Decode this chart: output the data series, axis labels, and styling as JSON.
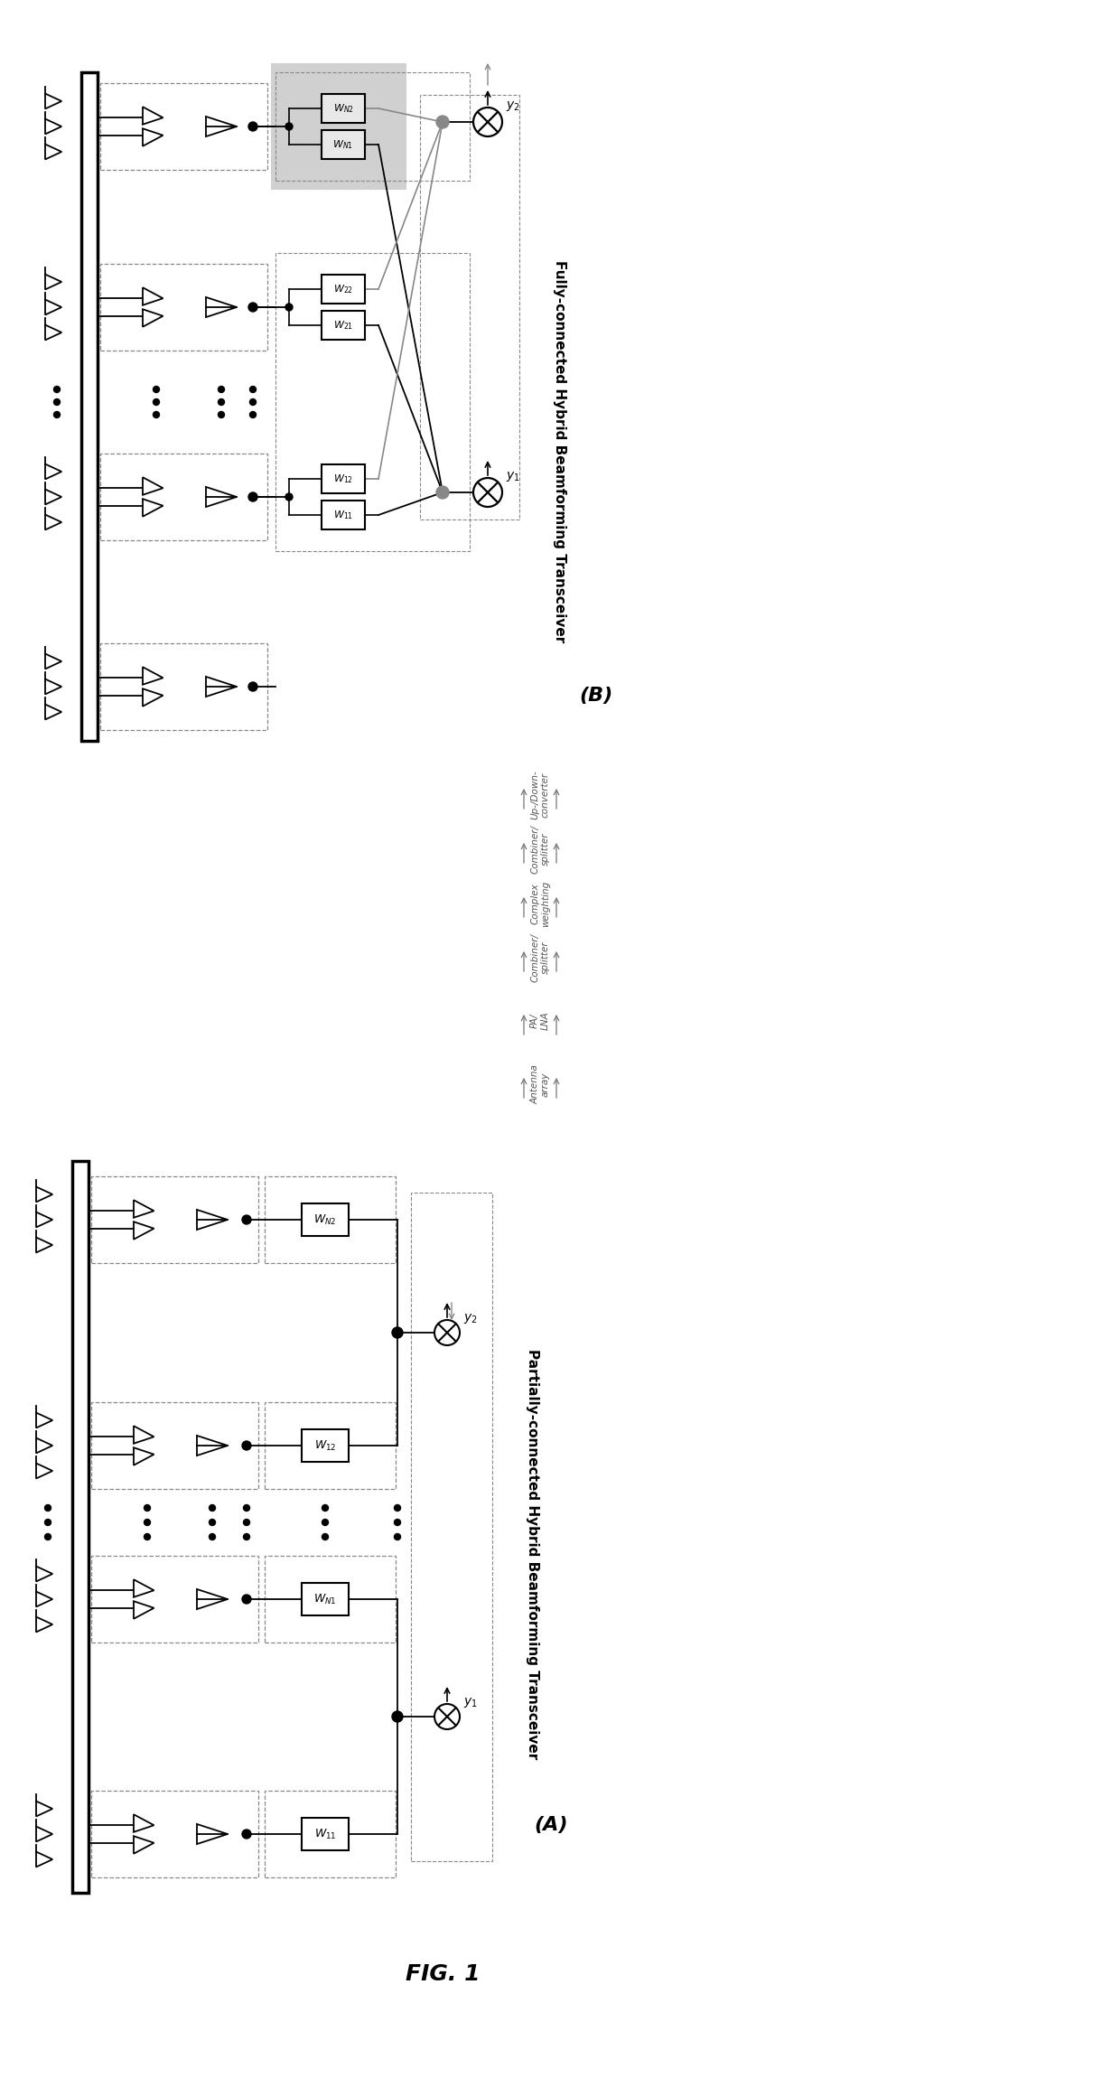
{
  "title": "FIG. 1",
  "label_A": "(A)",
  "label_B": "(B)",
  "subtitle_A": "Partially-connected Hybrid Beamforming Transceiver",
  "subtitle_B": "Fully-connected Hybrid Beamforming Transceiver",
  "axis_labels": [
    "Antenna\narray",
    "PA/\nLNA",
    "Combiner/\nsplitter",
    "Complex\nweighting",
    "Combiner/\nsplitter",
    "Up-/Down-\nconverter"
  ],
  "bg_color": "#ffffff",
  "box_color": "#000000",
  "gray_fill": "#c8c8c8",
  "light_gray": "#d8d8d8"
}
